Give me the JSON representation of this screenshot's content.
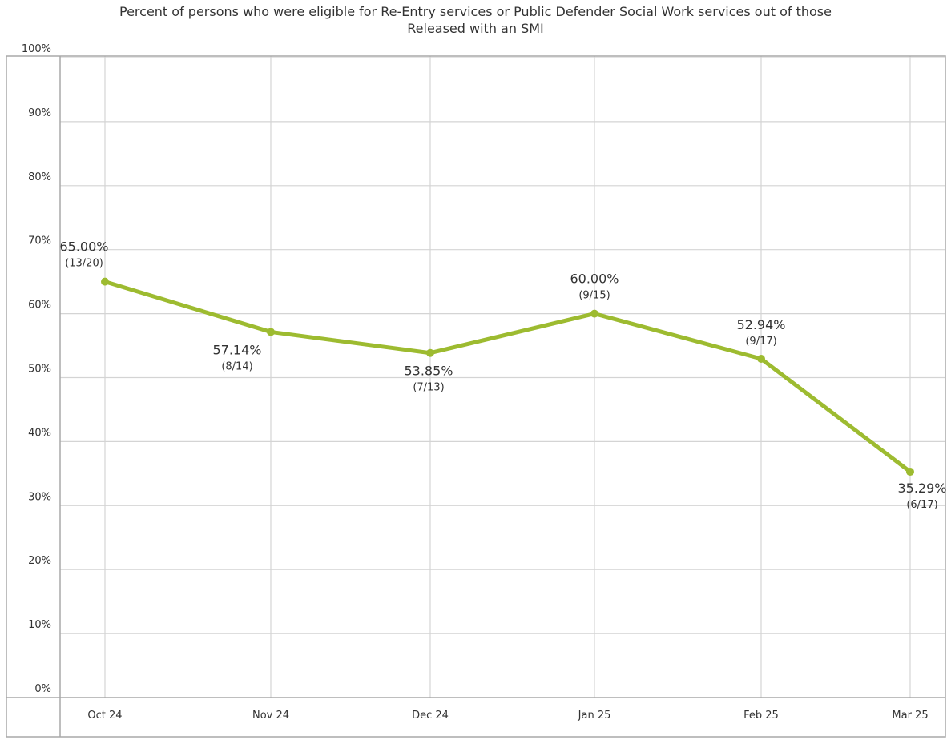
{
  "chart_data": {
    "type": "line",
    "title_lines": [
      "Percent of persons who were eligible for Re-Entry services or Public Defender Social Work services out of those",
      "Released with an SMI"
    ],
    "categories": [
      "Oct 24",
      "Nov 24",
      "Dec 24",
      "Jan 25",
      "Feb 25",
      "Mar 25"
    ],
    "values": [
      65.0,
      57.14,
      53.85,
      60.0,
      52.94,
      35.29
    ],
    "value_labels": [
      "65.00%",
      "57.14%",
      "53.85%",
      "60.00%",
      "52.94%",
      "35.29%"
    ],
    "count_labels": [
      "(13/20)",
      "(8/14)",
      "(7/13)",
      "(9/15)",
      "(9/17)",
      "(6/17)"
    ],
    "y_ticks": [
      "0%",
      "10%",
      "20%",
      "30%",
      "40%",
      "50%",
      "60%",
      "70%",
      "80%",
      "90%",
      "100%"
    ],
    "ylim": [
      0,
      100
    ],
    "grid": true,
    "legend": "none",
    "line_color": "#9dbb30",
    "grid_color": "#d4d4d4",
    "border_color": "#a8a8a8"
  }
}
